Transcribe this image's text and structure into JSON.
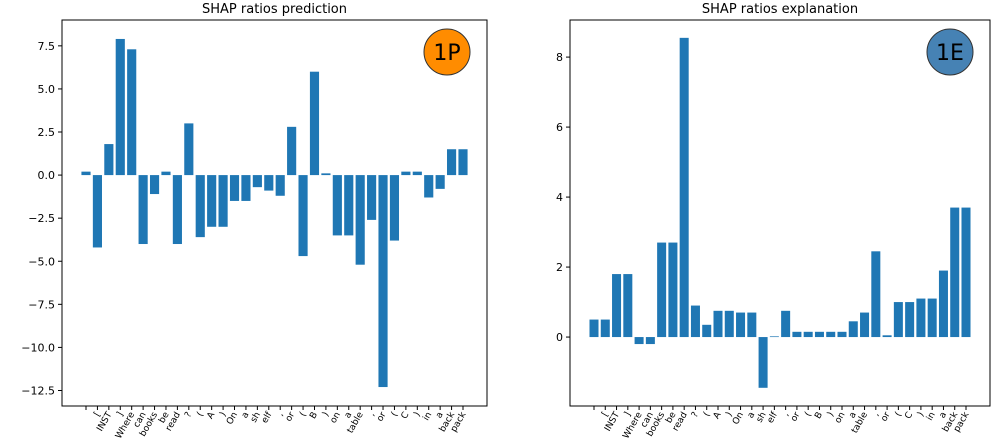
{
  "chart_data": [
    {
      "type": "bar",
      "title": "SHAP ratios prediction",
      "badge": "1P",
      "badge_color": "#ff8c00",
      "color": "#1f77b4",
      "categories": [
        null,
        "[",
        "INST",
        "]",
        "Where",
        "can",
        "books",
        "be",
        "read",
        "?",
        "(",
        "A",
        ")",
        "On",
        "a",
        "sh",
        "elf",
        ",",
        "or",
        "(",
        "B",
        ")",
        "on",
        "a",
        "table",
        ",",
        "or",
        "(",
        "C",
        ")",
        "in",
        "a",
        "back",
        "pack"
      ],
      "values": [
        0.2,
        -4.2,
        1.8,
        7.9,
        7.3,
        -4.0,
        -1.1,
        0.2,
        -4.0,
        3.0,
        -3.6,
        -3.0,
        -3.0,
        -1.5,
        -1.5,
        -0.7,
        -0.9,
        -1.2,
        2.8,
        -4.7,
        6.0,
        0.1,
        -3.5,
        -3.5,
        -5.2,
        -2.6,
        -12.3,
        -3.8,
        0.2,
        0.2,
        -1.3,
        -0.8,
        1.5,
        1.5
      ],
      "ylim": [
        -13.4,
        9.0
      ],
      "yticks": [
        {
          "value": -12.5,
          "label": "−12.5"
        },
        {
          "value": -10,
          "label": "−10.0"
        },
        {
          "value": -7.5,
          "label": "−7.5"
        },
        {
          "value": -5,
          "label": "−5.0"
        },
        {
          "value": -2.5,
          "label": "−2.5"
        },
        {
          "value": 0,
          "label": "0.0"
        },
        {
          "value": 2.5,
          "label": "2.5"
        },
        {
          "value": 5,
          "label": "5.0"
        },
        {
          "value": 7.5,
          "label": "7.5"
        }
      ]
    },
    {
      "type": "bar",
      "title": "SHAP ratios explanation",
      "badge": "1E",
      "badge_color": "#4682b4",
      "color": "#1f77b4",
      "categories": [
        null,
        "[",
        "INST",
        "]",
        "Where",
        "can",
        "books",
        "be",
        "read",
        "?",
        "(",
        "A",
        ")",
        "On",
        "a",
        "sh",
        "elf",
        ",",
        "or",
        "(",
        "B",
        ")",
        "on",
        "a",
        "table",
        ",",
        "or",
        "(",
        "C",
        ")",
        "in",
        "a",
        "back",
        "pack"
      ],
      "values": [
        0.5,
        0.5,
        1.8,
        1.8,
        -0.2,
        -0.2,
        2.7,
        2.7,
        8.55,
        0.9,
        0.35,
        0.75,
        0.75,
        0.7,
        0.7,
        -1.45,
        0.02,
        0.75,
        0.15,
        0.15,
        0.15,
        0.15,
        0.15,
        0.45,
        0.7,
        2.45,
        0.05,
        1.0,
        1.0,
        1.1,
        1.1,
        1.9,
        3.7,
        3.7
      ],
      "ylim": [
        -1.97,
        9.06
      ],
      "yticks": [
        0,
        2,
        4,
        6,
        8
      ]
    }
  ]
}
